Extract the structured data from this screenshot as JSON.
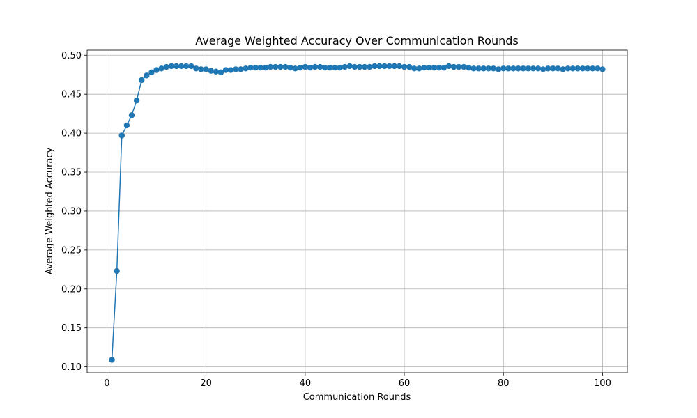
{
  "chart_data": {
    "type": "line",
    "title": "Average Weighted Accuracy Over Communication Rounds",
    "xlabel": "Communication Rounds",
    "ylabel": "Average Weighted Accuracy",
    "xlim": [
      -4,
      105
    ],
    "ylim": [
      0.0925,
      0.5065
    ],
    "xticks": [
      0,
      20,
      40,
      60,
      80,
      100
    ],
    "yticks": [
      0.1,
      0.15,
      0.2,
      0.25,
      0.3,
      0.35,
      0.4,
      0.45,
      0.5
    ],
    "xtick_labels": [
      "0",
      "20",
      "40",
      "60",
      "80",
      "100"
    ],
    "ytick_labels": [
      "0.10",
      "0.15",
      "0.20",
      "0.25",
      "0.30",
      "0.35",
      "0.40",
      "0.45",
      "0.50"
    ],
    "grid": true,
    "marker": "circle",
    "color": "#1f77b4",
    "series": [
      {
        "x": [
          1,
          2,
          3,
          4,
          5,
          6,
          7,
          8,
          9,
          10,
          11,
          12,
          13,
          14,
          15,
          16,
          17,
          18,
          19,
          20,
          21,
          22,
          23,
          24,
          25,
          26,
          27,
          28,
          29,
          30,
          31,
          32,
          33,
          34,
          35,
          36,
          37,
          38,
          39,
          40,
          41,
          42,
          43,
          44,
          45,
          46,
          47,
          48,
          49,
          50,
          51,
          52,
          53,
          54,
          55,
          56,
          57,
          58,
          59,
          60,
          61,
          62,
          63,
          64,
          65,
          66,
          67,
          68,
          69,
          70,
          71,
          72,
          73,
          74,
          75,
          76,
          77,
          78,
          79,
          80,
          81,
          82,
          83,
          84,
          85,
          86,
          87,
          88,
          89,
          90,
          91,
          92,
          93,
          94,
          95,
          96,
          97,
          98,
          99,
          100
        ],
        "values": [
          0.109,
          0.223,
          0.397,
          0.41,
          0.423,
          0.442,
          0.468,
          0.474,
          0.478,
          0.481,
          0.483,
          0.485,
          0.486,
          0.486,
          0.486,
          0.486,
          0.486,
          0.483,
          0.482,
          0.482,
          0.48,
          0.479,
          0.478,
          0.481,
          0.481,
          0.482,
          0.482,
          0.483,
          0.484,
          0.484,
          0.484,
          0.484,
          0.485,
          0.485,
          0.485,
          0.485,
          0.484,
          0.483,
          0.484,
          0.485,
          0.484,
          0.485,
          0.485,
          0.484,
          0.484,
          0.484,
          0.484,
          0.485,
          0.486,
          0.485,
          0.485,
          0.485,
          0.485,
          0.486,
          0.486,
          0.486,
          0.486,
          0.486,
          0.486,
          0.485,
          0.485,
          0.483,
          0.483,
          0.484,
          0.484,
          0.484,
          0.484,
          0.484,
          0.486,
          0.485,
          0.485,
          0.485,
          0.484,
          0.483,
          0.483,
          0.483,
          0.483,
          0.483,
          0.482,
          0.483,
          0.483,
          0.483,
          0.483,
          0.483,
          0.483,
          0.483,
          0.483,
          0.482,
          0.483,
          0.483,
          0.483,
          0.482,
          0.483,
          0.483,
          0.483,
          0.483,
          0.483,
          0.483,
          0.483,
          0.482
        ]
      }
    ]
  }
}
